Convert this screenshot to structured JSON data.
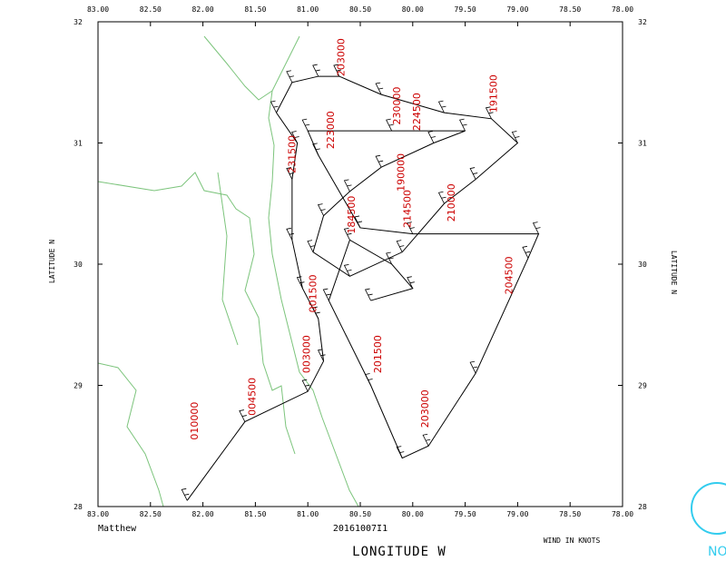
{
  "chart_data": {
    "type": "track",
    "storm": "Matthew",
    "mission": "20161007I1",
    "xlabel": "LONGITUDE W",
    "ylabel": "LATITUDE N",
    "note": "WIND IN KNOTS",
    "color": "#000000",
    "annotation_color": "#cc0000",
    "xlim": [
      -83,
      -78
    ],
    "ylim": [
      28,
      32
    ],
    "xticks": [
      {
        "value": -83,
        "label": "83.00"
      },
      {
        "value": -82.5,
        "label": "82.50"
      },
      {
        "value": -82,
        "label": "82.00"
      },
      {
        "value": -81.5,
        "label": "81.50"
      },
      {
        "value": -81,
        "label": "81.00"
      },
      {
        "value": -80.5,
        "label": "80.50"
      },
      {
        "value": -80,
        "label": "80.00"
      },
      {
        "value": -79.5,
        "label": "79.50"
      },
      {
        "value": -79,
        "label": "79.00"
      },
      {
        "value": -78.5,
        "label": "78.50"
      },
      {
        "value": -78,
        "label": "78.00"
      }
    ],
    "yticks": [
      28,
      29,
      30,
      31,
      32
    ],
    "x": [
      -82.15,
      -81.6,
      -81.0,
      -80.85,
      -80.9,
      -81.05,
      -81.15,
      -81.15,
      -81.1,
      -81.3,
      -81.15,
      -80.9,
      -80.7,
      -80.3,
      -79.7,
      -79.25,
      -79.0,
      -79.4,
      -79.7,
      -80.1,
      -80.6,
      -80.95,
      -80.85,
      -80.6,
      -80.3,
      -79.8,
      -79.5,
      -80.2,
      -81.0,
      -80.9,
      -80.5,
      -80.0,
      -78.8,
      -78.9,
      -79.4,
      -79.85,
      -80.1,
      -80.4,
      -80.8,
      -80.6,
      -80.2,
      -80.0,
      -80.4
    ],
    "y": [
      28.05,
      28.7,
      28.95,
      29.2,
      29.55,
      29.8,
      30.2,
      30.7,
      31.0,
      31.25,
      31.5,
      31.55,
      31.55,
      31.4,
      31.25,
      31.2,
      31.0,
      30.7,
      30.5,
      30.1,
      29.9,
      30.1,
      30.4,
      30.6,
      30.8,
      31.0,
      31.1,
      31.1,
      31.1,
      30.9,
      30.3,
      30.25,
      30.25,
      30.05,
      29.1,
      28.5,
      28.4,
      29.0,
      29.7,
      30.2,
      30.0,
      29.8,
      29.7
    ],
    "annotations": [
      {
        "text": "203000",
        "x": -80.65,
        "y": 31.55
      },
      {
        "text": "191500",
        "x": -79.2,
        "y": 31.25
      },
      {
        "text": "230000",
        "x": -80.12,
        "y": 31.15
      },
      {
        "text": "224500",
        "x": -79.93,
        "y": 31.1
      },
      {
        "text": "223000",
        "x": -80.75,
        "y": 30.95
      },
      {
        "text": "231500",
        "x": -81.12,
        "y": 30.75
      },
      {
        "text": "190000",
        "x": -80.08,
        "y": 30.6
      },
      {
        "text": "210000",
        "x": -79.6,
        "y": 30.35
      },
      {
        "text": "214500",
        "x": -80.02,
        "y": 30.3
      },
      {
        "text": "184500",
        "x": -80.55,
        "y": 30.25
      },
      {
        "text": "204500",
        "x": -79.05,
        "y": 29.75
      },
      {
        "text": "201500",
        "x": -80.3,
        "y": 29.1
      },
      {
        "text": "203000",
        "x": -79.85,
        "y": 28.65
      },
      {
        "text": "001500",
        "x": -80.92,
        "y": 29.6
      },
      {
        "text": "003000",
        "x": -80.98,
        "y": 29.1
      },
      {
        "text": "004500",
        "x": -81.5,
        "y": 28.75
      },
      {
        "text": "010000",
        "x": -82.05,
        "y": 28.55
      }
    ]
  },
  "logo_text": "NOAA"
}
